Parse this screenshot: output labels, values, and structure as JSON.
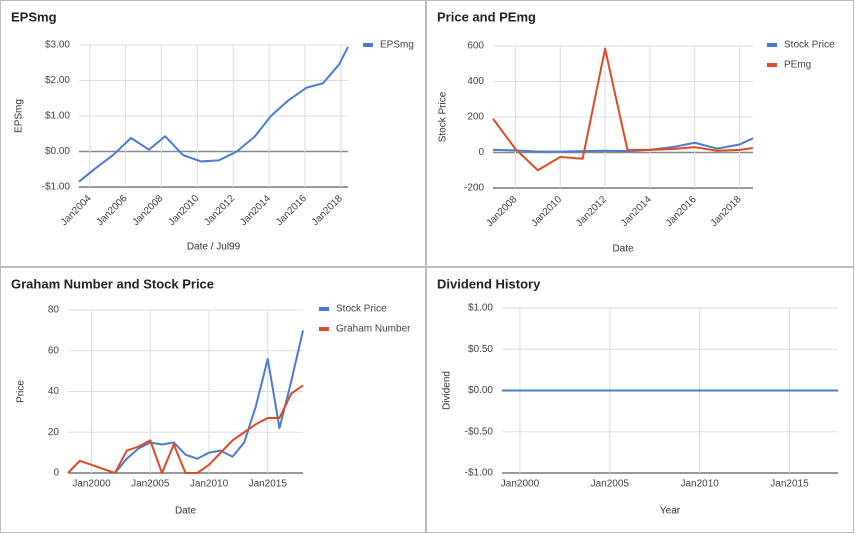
{
  "chart_data": [
    {
      "type": "line",
      "title": "EPSmg",
      "x_label": "Date / Jul99",
      "y_label": "EPSmg",
      "x": [
        2003.4,
        2004.3,
        2005.3,
        2006.3,
        2007.3,
        2008.2,
        2009.2,
        2010.2,
        2011.2,
        2012.2,
        2013.2,
        2014.1,
        2015.1,
        2016.1,
        2017.0,
        2017.9,
        2018.4
      ],
      "series": [
        {
          "name": "EPSmg",
          "color": "#4a7bd0",
          "values": [
            -0.85,
            -0.48,
            -0.1,
            0.38,
            0.05,
            0.43,
            -0.1,
            -0.28,
            -0.25,
            0.0,
            0.42,
            1.0,
            1.45,
            1.8,
            1.92,
            2.45,
            2.95
          ]
        }
      ],
      "xlim": [
        2003.4,
        2018.4
      ],
      "xticks": [
        {
          "value": 2004,
          "label": "Jan2004"
        },
        {
          "value": 2006,
          "label": "Jan2006"
        },
        {
          "value": 2008,
          "label": "Jan2008"
        },
        {
          "value": 2010,
          "label": "Jan2010"
        },
        {
          "value": 2012,
          "label": "Jan2012"
        },
        {
          "value": 2014,
          "label": "Jan2014"
        },
        {
          "value": 2016,
          "label": "Jan2016"
        },
        {
          "value": 2018,
          "label": "Jan2018"
        }
      ],
      "ylim": [
        -1,
        3
      ],
      "yticks": [
        {
          "value": -1,
          "label": "-$1.00"
        },
        {
          "value": 0,
          "label": "$0.00"
        },
        {
          "value": 1,
          "label": "$1.00"
        },
        {
          "value": 2,
          "label": "$2.00"
        },
        {
          "value": 3,
          "label": "$3.00"
        }
      ],
      "grid": true,
      "legend": "right"
    },
    {
      "type": "line",
      "title": "Price and PEmg",
      "x_label": "Date",
      "y_label": "Stock Price",
      "x": [
        2007,
        2008,
        2009,
        2010,
        2011,
        2012,
        2013,
        2014,
        2015,
        2016,
        2017,
        2018,
        2018.6
      ],
      "series": [
        {
          "name": "Stock Price",
          "color": "#4a7bd0",
          "values": [
            15,
            12,
            5,
            5,
            8,
            10,
            8,
            15,
            30,
            55,
            22,
            45,
            80
          ]
        },
        {
          "name": "PEmg",
          "color": "#dc4a26",
          "values": [
            190,
            20,
            -100,
            -25,
            -35,
            585,
            15,
            15,
            20,
            30,
            10,
            15,
            25
          ]
        }
      ],
      "xlim": [
        2007,
        2018.6
      ],
      "xticks": [
        {
          "value": 2008,
          "label": "Jan2008"
        },
        {
          "value": 2010,
          "label": "Jan2010"
        },
        {
          "value": 2012,
          "label": "Jan2012"
        },
        {
          "value": 2014,
          "label": "Jan2014"
        },
        {
          "value": 2016,
          "label": "Jan2016"
        },
        {
          "value": 2018,
          "label": "Jan2018"
        }
      ],
      "ylim": [
        -200,
        600
      ],
      "yticks": [
        -200,
        0,
        200,
        400,
        600
      ],
      "grid": true,
      "legend": "right"
    },
    {
      "type": "line",
      "title": "Graham Number and Stock Price",
      "x_label": "Date",
      "y_label": "Price",
      "x": [
        1998,
        1999,
        2000,
        2001,
        2002,
        2003,
        2004,
        2005,
        2006,
        2007,
        2008,
        2009,
        2010,
        2011,
        2012,
        2013,
        2014,
        2015,
        2016,
        2017,
        2018
      ],
      "series": [
        {
          "name": "Stock Price",
          "color": "#4a7bd0",
          "values": [
            null,
            null,
            null,
            null,
            0,
            7,
            12,
            15,
            14,
            15,
            9,
            7,
            10,
            11,
            8,
            15,
            33,
            56,
            22,
            45,
            70
          ]
        },
        {
          "name": "Graham Number",
          "color": "#dc4a26",
          "values": [
            0,
            6,
            4,
            2,
            0,
            11,
            13,
            16,
            0,
            14,
            0,
            0,
            4,
            10,
            16,
            20,
            24,
            27,
            27,
            39,
            43
          ]
        }
      ],
      "xlim": [
        1998,
        2018
      ],
      "xticks": [
        {
          "value": 2000,
          "label": "Jan2000"
        },
        {
          "value": 2005,
          "label": "Jan2005"
        },
        {
          "value": 2010,
          "label": "Jan2010"
        },
        {
          "value": 2015,
          "label": "Jan2015"
        }
      ],
      "ylim": [
        0,
        80
      ],
      "yticks": [
        0,
        20,
        40,
        60,
        80
      ],
      "grid": true,
      "legend": "right"
    },
    {
      "type": "line",
      "title": "Dividend History",
      "x_label": "Year",
      "y_label": "Dividend",
      "x": [
        1999,
        2017.7
      ],
      "series": [
        {
          "color": "#4a7bd0",
          "values": [
            0,
            0
          ]
        }
      ],
      "xlim": [
        1999,
        2017.7
      ],
      "xticks": [
        {
          "value": 2000,
          "label": "Jan2000"
        },
        {
          "value": 2005,
          "label": "Jan2005"
        },
        {
          "value": 2010,
          "label": "Jan2010"
        },
        {
          "value": 2015,
          "label": "Jan2015"
        }
      ],
      "ylim": [
        -1,
        1
      ],
      "yticks": [
        {
          "value": -1,
          "label": "-$1.00"
        },
        {
          "value": -0.5,
          "label": "-$0.50"
        },
        {
          "value": 0,
          "label": "$0.00"
        },
        {
          "value": 0.5,
          "label": "$0.50"
        },
        {
          "value": 1,
          "label": "$1.00"
        }
      ],
      "grid": true
    }
  ]
}
